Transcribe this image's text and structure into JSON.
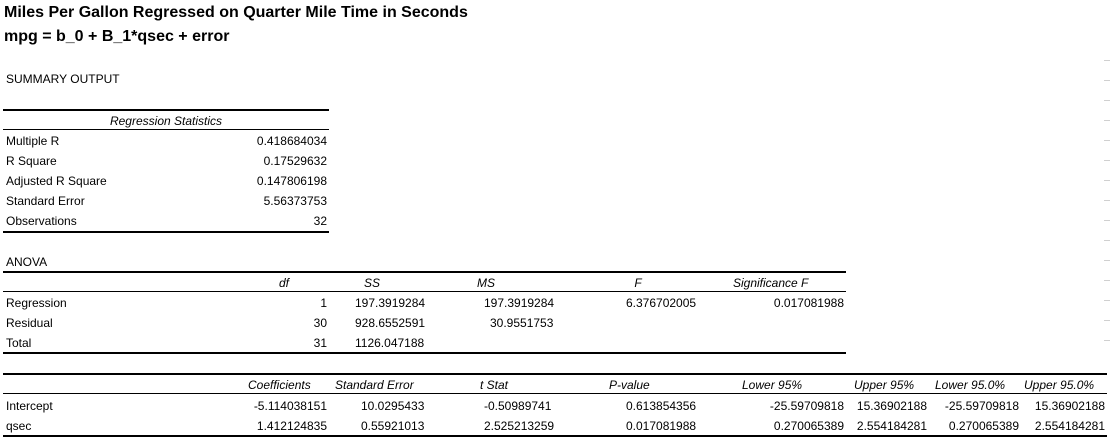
{
  "header": {
    "title": "Miles Per Gallon Regressed on Quarter Mile Time in Seconds",
    "formula": "mpg = b_0 + B_1*qsec + error",
    "summary_label": "SUMMARY OUTPUT"
  },
  "regression_statistics": {
    "heading": "Regression Statistics",
    "rows": [
      {
        "label": "Multiple R",
        "value": "0.418684034"
      },
      {
        "label": "R Square",
        "value": "0.17529632"
      },
      {
        "label": "Adjusted R Square",
        "value": "0.147806198"
      },
      {
        "label": "Standard Error",
        "value": "5.56373753"
      },
      {
        "label": "Observations",
        "value": "32"
      }
    ]
  },
  "anova": {
    "label": "ANOVA",
    "headers": {
      "df": "df",
      "ss": "SS",
      "ms": "MS",
      "f": "F",
      "sig": "Significance F"
    },
    "rows": [
      {
        "label": "Regression",
        "df": "1",
        "ss": "197.3919284",
        "ms": "197.3919284",
        "f": "6.376702005",
        "sig": "0.017081988"
      },
      {
        "label": "Residual",
        "df": "30",
        "ss": "928.6552591",
        "ms": "30.9551753",
        "f": "",
        "sig": ""
      },
      {
        "label": "Total",
        "df": "31",
        "ss": "1126.047188",
        "ms": "",
        "f": "",
        "sig": ""
      }
    ]
  },
  "coefficients": {
    "headers": {
      "coef": "Coefficients",
      "se": "Standard Error",
      "t": "t Stat",
      "p": "P-value",
      "l95": "Lower 95%",
      "u95": "Upper 95%",
      "l950": "Lower 95.0%",
      "u950": "Upper 95.0%"
    },
    "rows": [
      {
        "label": "Intercept",
        "coef": "-5.114038151",
        "se": "10.0295433",
        "t": "-0.50989741",
        "p": "0.613854356",
        "l95": "-25.59709818",
        "u95": "15.36902188",
        "l950": "-25.59709818",
        "u950": "15.36902188"
      },
      {
        "label": "qsec",
        "coef": "1.412124835",
        "se": "0.55921013",
        "t": "2.525213259",
        "p": "0.017081988",
        "l95": "0.270065389",
        "u95": "2.554184281",
        "l950": "0.270065389",
        "u950": "2.554184281"
      }
    ]
  }
}
